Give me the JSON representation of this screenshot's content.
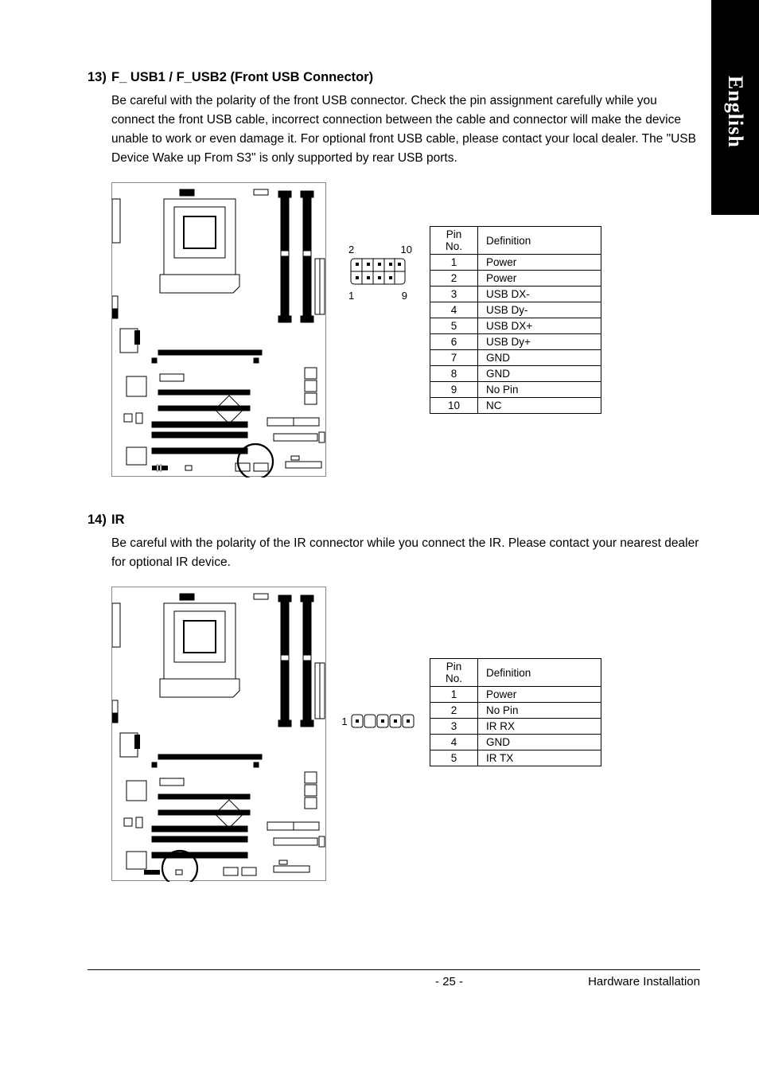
{
  "sideTab": "English",
  "section13": {
    "num": "13)",
    "title": "F_ USB1 / F_USB2 (Front USB Connector)",
    "body": "Be careful with the polarity of the front USB connector. Check the pin assignment carefully while you connect the front USB cable, incorrect connection between the cable and connector will make the device unable to work or even damage it. For optional front USB cable, please contact your local dealer. The \"USB Device Wake up From S3\" is only supported by rear USB ports.",
    "connLabels": {
      "tl": "2",
      "tr": "10",
      "bl": "1",
      "br": "9"
    },
    "tableHeader": [
      "Pin No.",
      "Definition"
    ],
    "rows": [
      [
        "1",
        "Power"
      ],
      [
        "2",
        "Power"
      ],
      [
        "3",
        "USB DX-"
      ],
      [
        "4",
        "USB Dy-"
      ],
      [
        "5",
        "USB DX+"
      ],
      [
        "6",
        "USB Dy+"
      ],
      [
        "7",
        "GND"
      ],
      [
        "8",
        "GND"
      ],
      [
        "9",
        "No Pin"
      ],
      [
        "10",
        "NC"
      ]
    ]
  },
  "section14": {
    "num": "14)",
    "title": "IR",
    "body": "Be careful with the polarity of the IR connector while you connect the IR. Please contact your nearest dealer for optional IR device.",
    "connLabel": "1",
    "tableHeader": [
      "Pin No.",
      "Definition"
    ],
    "rows": [
      [
        "1",
        "Power"
      ],
      [
        "2",
        "No Pin"
      ],
      [
        "3",
        "IR RX"
      ],
      [
        "4",
        "GND"
      ],
      [
        "5",
        "IR TX"
      ]
    ]
  },
  "footer": {
    "page": "- 25 -",
    "section": "Hardware Installation"
  },
  "colors": {
    "circle": "#000",
    "board": "#888"
  }
}
